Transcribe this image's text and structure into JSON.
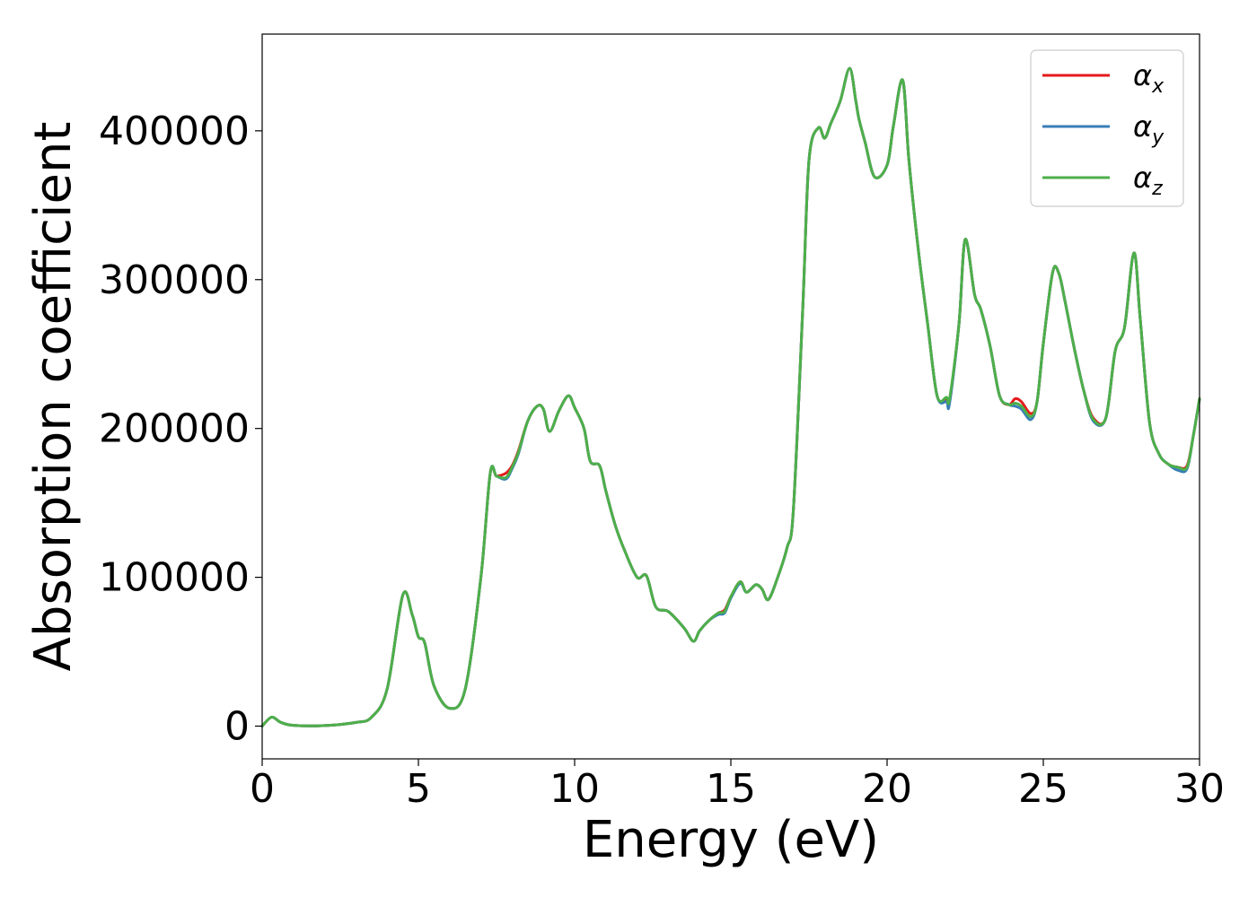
{
  "chart_data": {
    "type": "line",
    "title": "",
    "xlabel": "Energy (eV)",
    "ylabel": "Absorption coefficient",
    "xlim": [
      0,
      30
    ],
    "ylim": [
      -22000,
      465000
    ],
    "xticks": [
      0,
      5,
      10,
      15,
      20,
      25,
      30
    ],
    "yticks": [
      0,
      100000,
      200000,
      300000,
      400000
    ],
    "grid": false,
    "legend_position": "top-right",
    "colors": {
      "x": "#e41a1c",
      "y": "#377eb8",
      "z": "#4daf4a"
    },
    "legend": [
      {
        "base": "α",
        "sub": "x"
      },
      {
        "base": "α",
        "sub": "y"
      },
      {
        "base": "α",
        "sub": "z"
      }
    ],
    "series": [
      {
        "key": "x",
        "x": [
          0,
          0.3,
          0.6,
          1.0,
          2.0,
          3.0,
          3.5,
          4.0,
          4.5,
          4.8,
          5.0,
          5.2,
          5.5,
          6.0,
          6.5,
          7.0,
          7.3,
          7.5,
          7.8,
          8.0,
          8.2,
          8.5,
          8.8,
          9.0,
          9.2,
          9.5,
          9.8,
          10.0,
          10.3,
          10.5,
          10.8,
          11.0,
          11.3,
          11.6,
          12.0,
          12.3,
          12.6,
          13.0,
          13.5,
          13.8,
          14.0,
          14.3,
          14.6,
          14.8,
          15.0,
          15.3,
          15.5,
          15.8,
          16.0,
          16.2,
          16.5,
          16.8,
          17.0,
          17.3,
          17.5,
          17.8,
          18.0,
          18.2,
          18.5,
          18.8,
          19.0,
          19.1,
          19.3,
          19.6,
          20.0,
          20.2,
          20.5,
          20.7,
          21.0,
          21.3,
          21.6,
          21.9,
          22.0,
          22.3,
          22.5,
          22.8,
          23.0,
          23.3,
          23.6,
          23.9,
          24.1,
          24.3,
          24.6,
          24.8,
          25.0,
          25.3,
          25.5,
          25.7,
          26.0,
          26.3,
          26.6,
          27.0,
          27.3,
          27.6,
          27.9,
          28.1,
          28.4,
          28.7,
          29.0,
          29.3,
          29.6,
          29.8,
          30.0
        ],
        "y": [
          0,
          6000,
          2500,
          500,
          400,
          2500,
          6000,
          25000,
          88000,
          75000,
          60000,
          56000,
          27000,
          12000,
          25000,
          100000,
          170000,
          168000,
          170000,
          175000,
          185000,
          205000,
          215000,
          213000,
          198000,
          212000,
          222000,
          214000,
          200000,
          178000,
          175000,
          158000,
          135000,
          118000,
          100000,
          101000,
          80000,
          77000,
          66000,
          57000,
          64000,
          71000,
          76000,
          78000,
          87000,
          97000,
          90000,
          95000,
          92000,
          85000,
          100000,
          120000,
          145000,
          280000,
          380000,
          402000,
          395000,
          405000,
          420000,
          442000,
          420000,
          408000,
          392000,
          369000,
          377000,
          403000,
          434000,
          380000,
          320000,
          270000,
          222000,
          220000,
          218000,
          270000,
          327000,
          290000,
          280000,
          255000,
          222000,
          216000,
          220000,
          218000,
          210000,
          218000,
          257000,
          305000,
          304000,
          285000,
          253000,
          225000,
          207000,
          207000,
          252000,
          268000,
          318000,
          274000,
          204000,
          183000,
          176000,
          174000,
          175000,
          195000,
          220000
        ]
      },
      {
        "key": "y",
        "x": [
          0,
          0.3,
          0.6,
          1.0,
          2.0,
          3.0,
          3.5,
          4.0,
          4.5,
          4.8,
          5.0,
          5.2,
          5.5,
          6.0,
          6.5,
          7.0,
          7.3,
          7.5,
          7.8,
          8.0,
          8.2,
          8.5,
          8.8,
          9.0,
          9.2,
          9.5,
          9.8,
          10.0,
          10.3,
          10.5,
          10.8,
          11.0,
          11.3,
          11.6,
          12.0,
          12.3,
          12.6,
          13.0,
          13.5,
          13.8,
          14.0,
          14.3,
          14.6,
          14.8,
          15.0,
          15.3,
          15.5,
          15.8,
          16.0,
          16.2,
          16.5,
          16.8,
          17.0,
          17.3,
          17.5,
          17.8,
          18.0,
          18.2,
          18.5,
          18.8,
          19.0,
          19.1,
          19.3,
          19.6,
          20.0,
          20.2,
          20.5,
          20.7,
          21.0,
          21.3,
          21.6,
          21.9,
          22.0,
          22.3,
          22.5,
          22.8,
          23.0,
          23.3,
          23.6,
          23.9,
          24.1,
          24.3,
          24.6,
          24.8,
          25.0,
          25.3,
          25.5,
          25.7,
          26.0,
          26.3,
          26.6,
          27.0,
          27.3,
          27.6,
          27.9,
          28.1,
          28.4,
          28.7,
          29.0,
          29.3,
          29.6,
          29.8,
          30.0
        ],
        "y": [
          0,
          6000,
          2500,
          500,
          400,
          2500,
          6000,
          25000,
          88000,
          75000,
          60000,
          56000,
          27000,
          12000,
          25000,
          100000,
          170000,
          168000,
          166000,
          173000,
          183000,
          205000,
          215000,
          213000,
          198000,
          212000,
          222000,
          214000,
          200000,
          178000,
          175000,
          158000,
          135000,
          118000,
          100000,
          101000,
          80000,
          77000,
          66000,
          57000,
          64000,
          71000,
          75000,
          76000,
          86000,
          96000,
          90000,
          95000,
          92000,
          85000,
          100000,
          120000,
          145000,
          280000,
          380000,
          402000,
          395000,
          405000,
          420000,
          442000,
          420000,
          408000,
          392000,
          369000,
          377000,
          403000,
          434000,
          380000,
          320000,
          270000,
          222000,
          218000,
          217000,
          270000,
          327000,
          290000,
          280000,
          255000,
          222000,
          216000,
          215000,
          213000,
          206000,
          218000,
          257000,
          305000,
          304000,
          285000,
          253000,
          225000,
          205000,
          207000,
          252000,
          268000,
          318000,
          274000,
          204000,
          183000,
          176000,
          172000,
          173000,
          195000,
          220000
        ]
      },
      {
        "key": "z",
        "x": [
          0,
          0.3,
          0.6,
          1.0,
          2.0,
          3.0,
          3.5,
          4.0,
          4.5,
          4.8,
          5.0,
          5.2,
          5.5,
          6.0,
          6.5,
          7.0,
          7.3,
          7.5,
          7.8,
          8.0,
          8.2,
          8.5,
          8.8,
          9.0,
          9.2,
          9.5,
          9.8,
          10.0,
          10.3,
          10.5,
          10.8,
          11.0,
          11.3,
          11.6,
          12.0,
          12.3,
          12.6,
          13.0,
          13.5,
          13.8,
          14.0,
          14.3,
          14.6,
          14.8,
          15.0,
          15.3,
          15.5,
          15.8,
          16.0,
          16.2,
          16.5,
          16.8,
          17.0,
          17.3,
          17.5,
          17.8,
          18.0,
          18.2,
          18.5,
          18.8,
          19.0,
          19.1,
          19.3,
          19.6,
          20.0,
          20.2,
          20.5,
          20.7,
          21.0,
          21.3,
          21.6,
          21.9,
          22.0,
          22.3,
          22.5,
          22.8,
          23.0,
          23.3,
          23.6,
          23.9,
          24.1,
          24.3,
          24.6,
          24.8,
          25.0,
          25.3,
          25.5,
          25.7,
          26.0,
          26.3,
          26.6,
          27.0,
          27.3,
          27.6,
          27.9,
          28.1,
          28.4,
          28.7,
          29.0,
          29.3,
          29.6,
          29.8,
          30.0
        ],
        "y": [
          0,
          6000,
          2500,
          500,
          400,
          2500,
          6000,
          25000,
          88000,
          75000,
          60000,
          56000,
          27000,
          12000,
          25000,
          100000,
          170000,
          168000,
          167000,
          174000,
          184000,
          205000,
          215000,
          213000,
          198000,
          212000,
          222000,
          214000,
          200000,
          178000,
          175000,
          158000,
          135000,
          118000,
          100000,
          101000,
          80000,
          77000,
          66000,
          57000,
          64000,
          71000,
          76000,
          77000,
          87000,
          97000,
          90000,
          95000,
          92000,
          85000,
          100000,
          120000,
          145000,
          280000,
          380000,
          402000,
          395000,
          405000,
          420000,
          442000,
          420000,
          408000,
          392000,
          369000,
          377000,
          403000,
          434000,
          380000,
          320000,
          270000,
          222000,
          221000,
          220000,
          270000,
          327000,
          290000,
          280000,
          255000,
          222000,
          216000,
          217000,
          215000,
          208000,
          218000,
          257000,
          305000,
          304000,
          285000,
          253000,
          225000,
          206000,
          207000,
          252000,
          268000,
          318000,
          274000,
          204000,
          183000,
          176000,
          174000,
          174000,
          195000,
          220000
        ]
      }
    ]
  }
}
